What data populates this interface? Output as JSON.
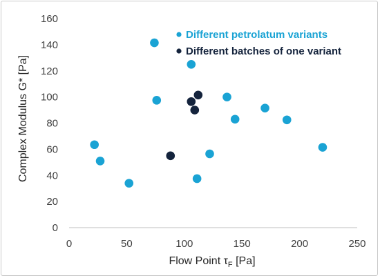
{
  "chart_data": {
    "type": "scatter",
    "title": "",
    "xlabel": {
      "main": "Flow Point τ",
      "sub": "F",
      "unit": " [Pa]"
    },
    "ylabel": "Complex Modulus G* [Pa]",
    "xlim": [
      0,
      250
    ],
    "ylim": [
      0,
      160
    ],
    "xticks": [
      0,
      50,
      100,
      150,
      200,
      250
    ],
    "yticks": [
      0,
      20,
      40,
      60,
      80,
      100,
      120,
      140,
      160
    ],
    "grid": false,
    "legend_position": "top-right",
    "series": [
      {
        "name": "Different petrolatum variants",
        "color": "#1aa3d4",
        "points": [
          [
            22,
            63.5
          ],
          [
            27,
            51
          ],
          [
            52,
            34
          ],
          [
            74,
            141.5
          ],
          [
            76,
            97.5
          ],
          [
            106,
            125
          ],
          [
            111,
            37.5
          ],
          [
            122,
            56.5
          ],
          [
            137,
            100
          ],
          [
            144,
            83
          ],
          [
            170,
            91.5
          ],
          [
            189,
            82.5
          ],
          [
            220,
            61.5
          ]
        ]
      },
      {
        "name": "Different batches of one variant",
        "color": "#14233c",
        "points": [
          [
            88,
            55
          ],
          [
            106,
            96.5
          ],
          [
            109,
            90
          ],
          [
            112,
            101.5
          ]
        ]
      }
    ]
  }
}
